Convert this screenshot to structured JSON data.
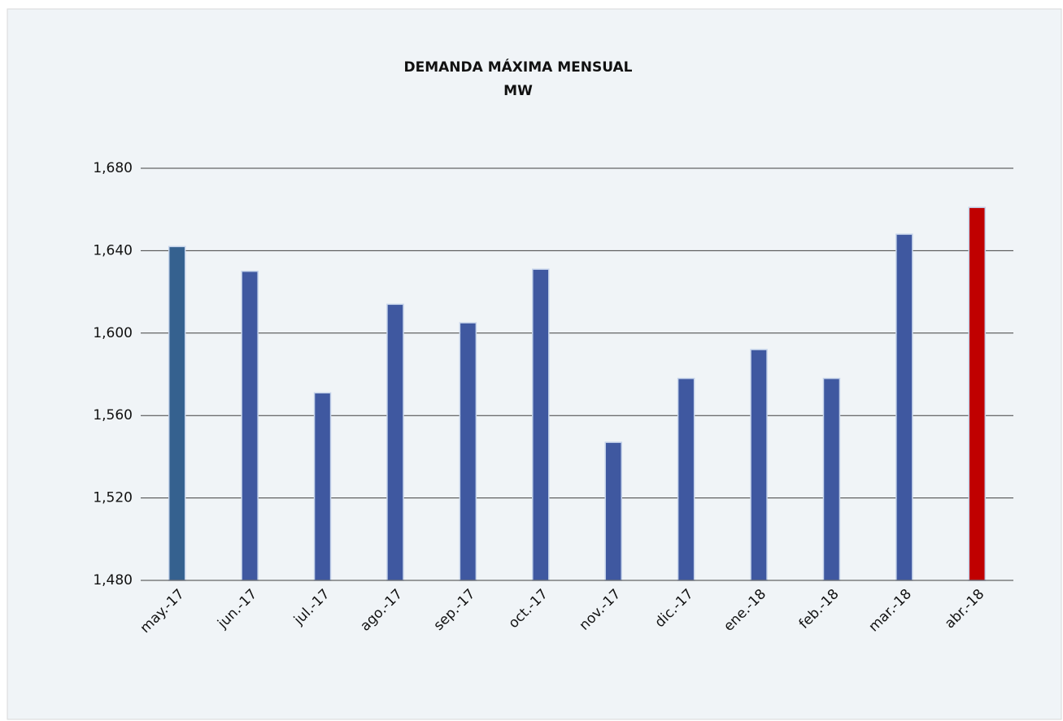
{
  "chart_data": {
    "type": "bar",
    "title": "DEMANDA  MÁXIMA  MENSUAL",
    "subtitle": "MW",
    "categories": [
      "may.-17",
      "jun.-17",
      "jul.-17",
      "ago.-17",
      "sep.-17",
      "oct.-17",
      "nov.-17",
      "dic.-17",
      "ene.-18",
      "feb.-18",
      "mar.-18",
      "abr.-18"
    ],
    "values": [
      1642,
      1630,
      1571,
      1614,
      1605,
      1631,
      1547,
      1578,
      1592,
      1578,
      1648,
      1661
    ],
    "colors": [
      "#35618f",
      "#3f58a0",
      "#3f58a0",
      "#3f58a0",
      "#3f58a0",
      "#3f58a0",
      "#3f58a0",
      "#3f58a0",
      "#3f58a0",
      "#3f58a0",
      "#3f58a0",
      "#c00000"
    ],
    "ylim": [
      1480,
      1680
    ],
    "yticks": [
      {
        "value": 1480,
        "label": "1,480"
      },
      {
        "value": 1520,
        "label": "1,520"
      },
      {
        "value": 1560,
        "label": "1,560"
      },
      {
        "value": 1600,
        "label": "1,600"
      },
      {
        "value": 1640,
        "label": "1,640"
      },
      {
        "value": 1680,
        "label": "1,680"
      }
    ],
    "grid": true
  }
}
